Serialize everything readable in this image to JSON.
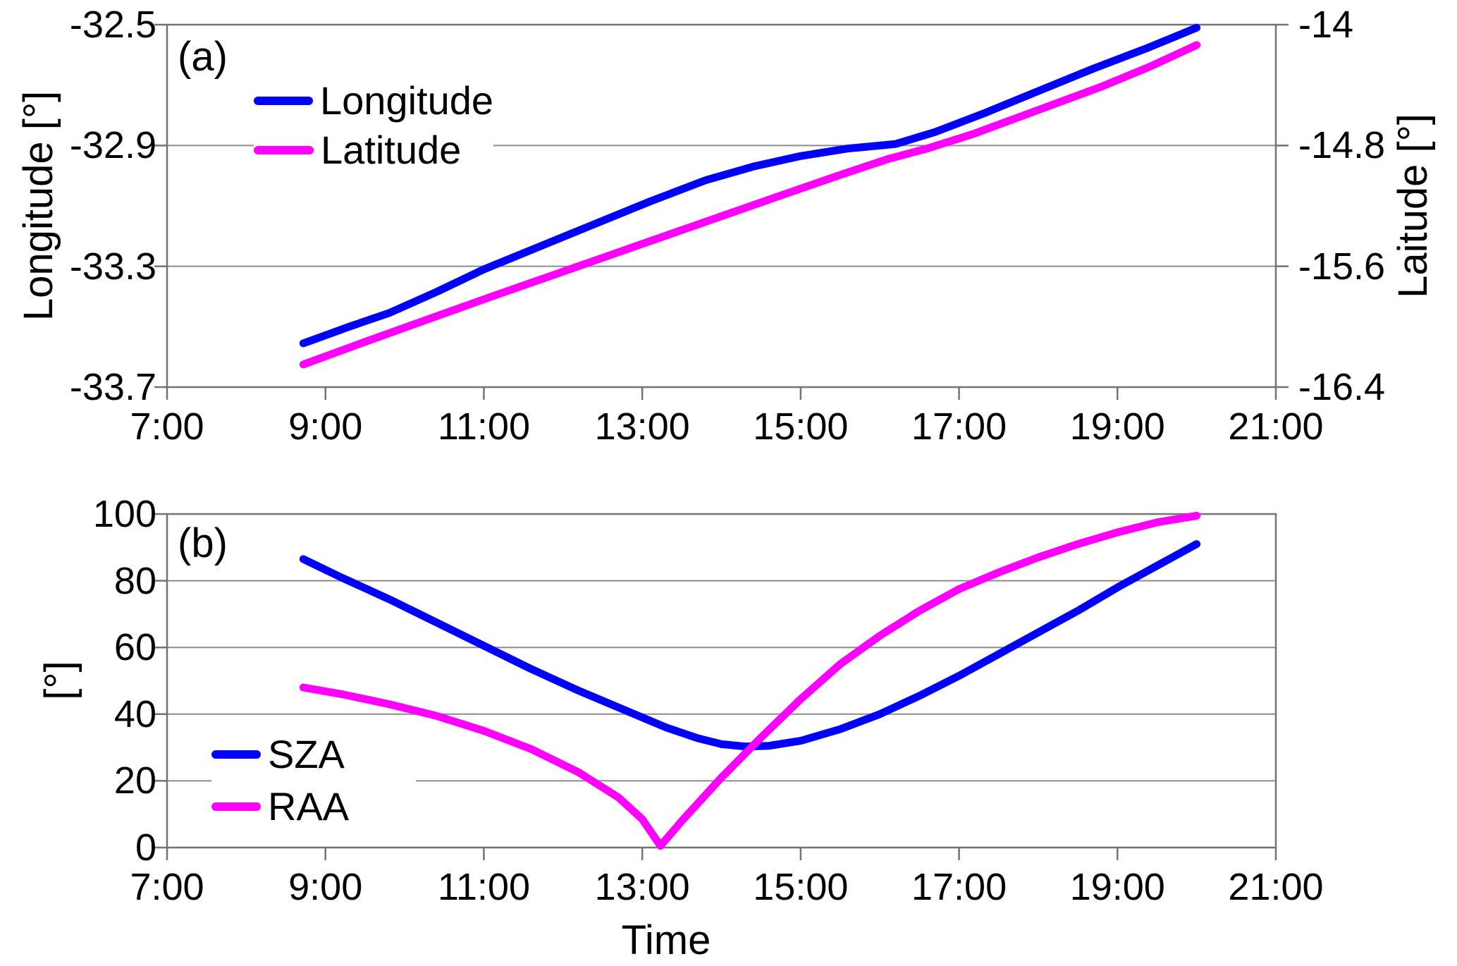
{
  "figure": {
    "background": "#ffffff",
    "grid_color": "#8c8c8c",
    "frame_color": "#737373",
    "text_color": "#000000"
  },
  "chart_data": [
    {
      "type": "line",
      "panel_label": "(a)",
      "x_axis": {
        "range_hours": [
          7,
          21
        ],
        "tick_hours": [
          7,
          9,
          11,
          13,
          15,
          17,
          19,
          21
        ],
        "tick_labels": [
          "7:00",
          "9:00",
          "11:00",
          "13:00",
          "15:00",
          "17:00",
          "19:00",
          "21:00"
        ],
        "title": ""
      },
      "y_left": {
        "title": "Longitude [°]",
        "range": [
          -33.7,
          -32.5
        ],
        "ticks": [
          -32.5,
          -32.9,
          -33.3,
          -33.7
        ],
        "tick_labels": [
          "-32.5",
          "-32.9",
          "-33.3",
          "-33.7"
        ]
      },
      "y_right": {
        "title": "Laitude [°]",
        "range": [
          -16.4,
          -14
        ],
        "ticks": [
          -14,
          -14.8,
          -15.6,
          -16.4
        ],
        "tick_labels": [
          "-14",
          "-14.8",
          "-15.6",
          "-16.4"
        ]
      },
      "legend": [
        {
          "label": "Longitude",
          "color": "#0000ff"
        },
        {
          "label": "Latitude",
          "color": "#ff00ff"
        }
      ],
      "series": [
        {
          "name": "Longitude",
          "color": "#0000ff",
          "axis": "left",
          "points": [
            [
              8.72,
              -33.555
            ],
            [
              9.3,
              -33.5
            ],
            [
              9.8,
              -33.455
            ],
            [
              10.4,
              -33.385
            ],
            [
              11.0,
              -33.31
            ],
            [
              11.7,
              -33.235
            ],
            [
              12.4,
              -33.16
            ],
            [
              13.1,
              -33.085
            ],
            [
              13.8,
              -33.015
            ],
            [
              14.4,
              -32.97
            ],
            [
              15.0,
              -32.935
            ],
            [
              15.6,
              -32.91
            ],
            [
              16.2,
              -32.895
            ],
            [
              16.7,
              -32.855
            ],
            [
              17.3,
              -32.795
            ],
            [
              18.0,
              -32.72
            ],
            [
              18.7,
              -32.645
            ],
            [
              19.4,
              -32.575
            ],
            [
              20.0,
              -32.51
            ]
          ]
        },
        {
          "name": "Latitude",
          "color": "#ff00ff",
          "axis": "right",
          "points": [
            [
              8.72,
              -16.25
            ],
            [
              9.5,
              -16.1
            ],
            [
              10.3,
              -15.95
            ],
            [
              11.1,
              -15.8
            ],
            [
              12.0,
              -15.635
            ],
            [
              12.9,
              -15.47
            ],
            [
              13.8,
              -15.305
            ],
            [
              14.7,
              -15.14
            ],
            [
              15.5,
              -14.995
            ],
            [
              16.1,
              -14.89
            ],
            [
              16.6,
              -14.82
            ],
            [
              17.2,
              -14.72
            ],
            [
              18.0,
              -14.565
            ],
            [
              18.8,
              -14.41
            ],
            [
              19.4,
              -14.28
            ],
            [
              20.0,
              -14.135
            ]
          ]
        }
      ]
    },
    {
      "type": "line",
      "panel_label": "(b)",
      "x_axis": {
        "range_hours": [
          7,
          21
        ],
        "tick_hours": [
          7,
          9,
          11,
          13,
          15,
          17,
          19,
          21
        ],
        "tick_labels": [
          "7:00",
          "9:00",
          "11:00",
          "13:00",
          "15:00",
          "17:00",
          "19:00",
          "21:00"
        ],
        "title": "Time"
      },
      "y_left": {
        "title": "[°]",
        "range": [
          0,
          100
        ],
        "ticks": [
          100,
          80,
          60,
          40,
          20,
          0
        ],
        "tick_labels": [
          "100",
          "80",
          "60",
          "40",
          "20",
          "0"
        ]
      },
      "y_right": null,
      "legend": [
        {
          "label": "SZA",
          "color": "#0000ff"
        },
        {
          "label": "RAA",
          "color": "#ff00ff"
        }
      ],
      "series": [
        {
          "name": "SZA",
          "color": "#0000ff",
          "axis": "left",
          "points": [
            [
              8.72,
              86.5
            ],
            [
              9.2,
              81
            ],
            [
              9.8,
              74.5
            ],
            [
              10.4,
              67.5
            ],
            [
              11.0,
              60.5
            ],
            [
              11.6,
              53.5
            ],
            [
              12.2,
              47
            ],
            [
              12.8,
              41
            ],
            [
              13.3,
              36
            ],
            [
              13.7,
              32.8
            ],
            [
              14.0,
              31
            ],
            [
              14.3,
              30.3
            ],
            [
              14.6,
              30.5
            ],
            [
              15.0,
              32
            ],
            [
              15.5,
              35.5
            ],
            [
              16.0,
              40
            ],
            [
              16.5,
              45.5
            ],
            [
              17.0,
              51.5
            ],
            [
              17.5,
              58
            ],
            [
              18.0,
              64.5
            ],
            [
              18.5,
              71
            ],
            [
              19.0,
              78
            ],
            [
              19.5,
              84.5
            ],
            [
              20.0,
              91
            ]
          ]
        },
        {
          "name": "RAA",
          "color": "#ff00ff",
          "axis": "left",
          "points": [
            [
              8.72,
              48
            ],
            [
              9.2,
              46
            ],
            [
              9.8,
              43
            ],
            [
              10.4,
              39.5
            ],
            [
              11.0,
              35
            ],
            [
              11.6,
              29.5
            ],
            [
              12.2,
              22.5
            ],
            [
              12.7,
              15
            ],
            [
              13.0,
              8.5
            ],
            [
              13.23,
              0.5
            ],
            [
              13.5,
              8
            ],
            [
              14.0,
              21
            ],
            [
              14.5,
              33
            ],
            [
              15.0,
              44.5
            ],
            [
              15.5,
              55
            ],
            [
              16.0,
              63.5
            ],
            [
              16.5,
              71
            ],
            [
              17.0,
              77.5
            ],
            [
              17.5,
              82.5
            ],
            [
              18.0,
              87
            ],
            [
              18.5,
              91
            ],
            [
              19.0,
              94.5
            ],
            [
              19.5,
              97.5
            ],
            [
              20.0,
              99.5
            ]
          ]
        }
      ]
    }
  ]
}
